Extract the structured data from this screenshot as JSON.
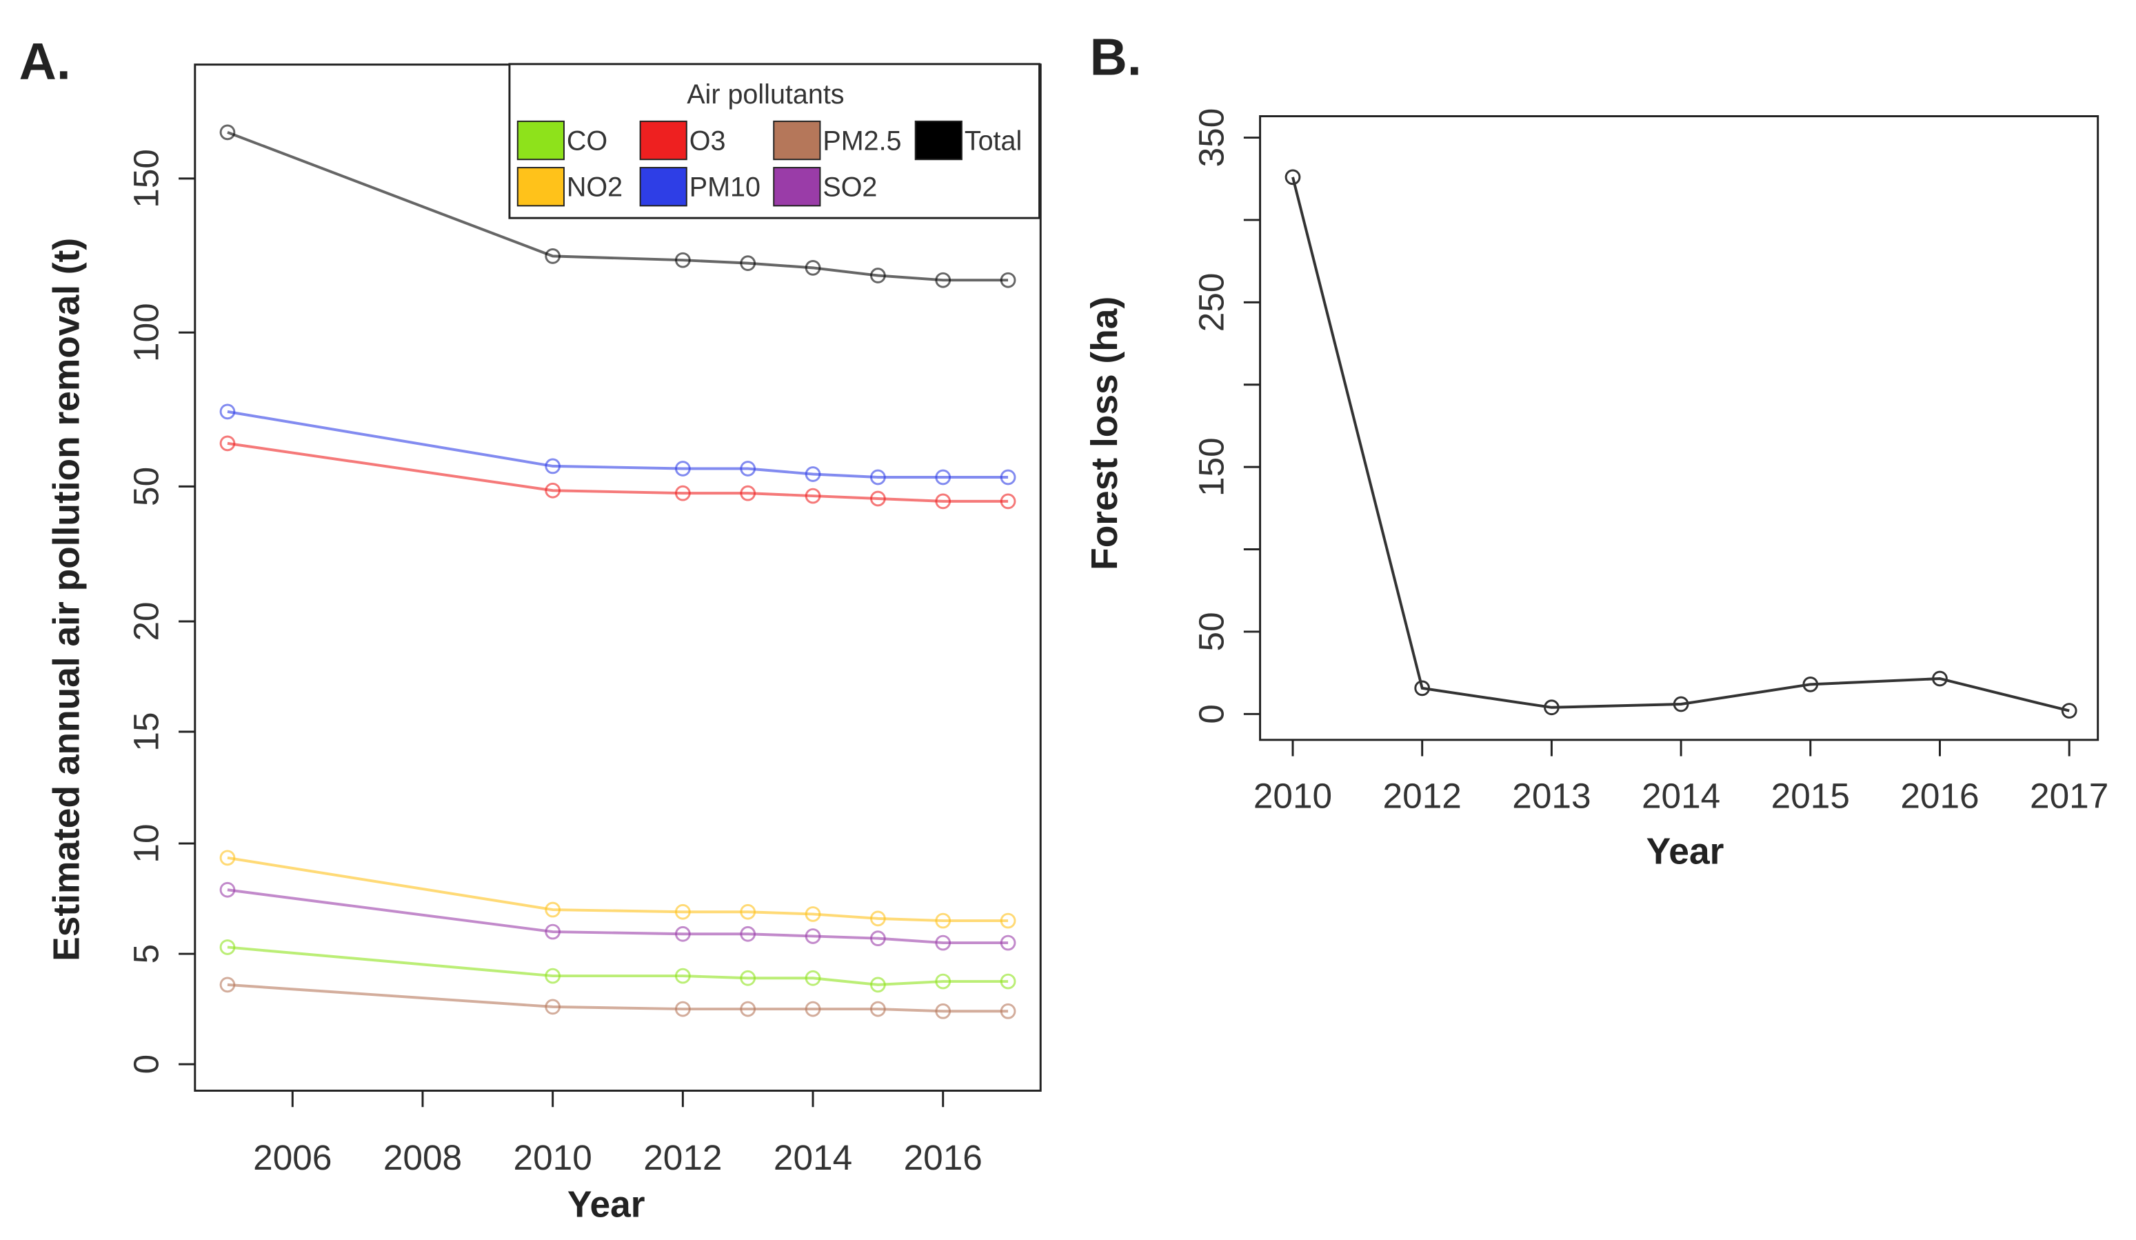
{
  "chart_data": [
    {
      "type": "line",
      "panel_label": "A.",
      "xlabel": "Year",
      "ylabel": "Estimated annual air pollution removal (t)",
      "legend_title": "Air pollutants",
      "x": [
        2005,
        2010,
        2012,
        2013,
        2014,
        2015,
        2016,
        2017
      ],
      "xlim": [
        2004.5,
        2017.5
      ],
      "xticks": [
        2006,
        2008,
        2010,
        2012,
        2014,
        2016
      ],
      "ylim": [
        -1.2,
        187
      ],
      "yticks": [
        0,
        5,
        10,
        15,
        20,
        50,
        100,
        150
      ],
      "series": [
        {
          "name": "CO",
          "color": "#8ee21b",
          "values": [
            5.3,
            4.0,
            4.0,
            3.9,
            3.9,
            3.6,
            3.75,
            3.75
          ]
        },
        {
          "name": "O3",
          "color": "#ee2020",
          "values": [
            64,
            49.1,
            48.5,
            48.5,
            47.9,
            47.3,
            46.7,
            46.7
          ]
        },
        {
          "name": "PM2.5",
          "color": "#b5775a",
          "values": [
            3.6,
            2.6,
            2.5,
            2.5,
            2.5,
            2.5,
            2.4,
            2.4
          ]
        },
        {
          "name": "Total",
          "color": "#000000",
          "values": [
            165,
            124.8,
            123.5,
            122.5,
            121,
            118.5,
            117,
            117
          ]
        },
        {
          "name": "NO2",
          "color": "#ffc21a",
          "values": [
            9.35,
            7.0,
            6.9,
            6.9,
            6.8,
            6.6,
            6.5,
            6.5
          ]
        },
        {
          "name": "PM10",
          "color": "#2e3ee6",
          "values": [
            74.3,
            56.6,
            55.8,
            55.8,
            54,
            53,
            53,
            53
          ]
        },
        {
          "name": "SO2",
          "color": "#9a3ca8",
          "values": [
            7.9,
            6.0,
            5.9,
            5.9,
            5.8,
            5.7,
            5.5,
            5.5
          ]
        }
      ]
    },
    {
      "type": "line",
      "panel_label": "B.",
      "xlabel": "Year",
      "ylabel": "Forest loss (ha)",
      "categories": [
        "2010",
        "2012",
        "2013",
        "2014",
        "2015",
        "2016",
        "2017"
      ],
      "values": [
        326,
        15.7,
        4,
        6,
        18,
        21.5,
        2
      ],
      "color": "#333333",
      "ylim": [
        -15.7,
        363
      ],
      "yticks": [
        0,
        50,
        {
          "value": 100,
          "label": null
        },
        150,
        {
          "value": 200,
          "label": null
        },
        250,
        {
          "value": 300,
          "label": null
        },
        350
      ]
    }
  ]
}
